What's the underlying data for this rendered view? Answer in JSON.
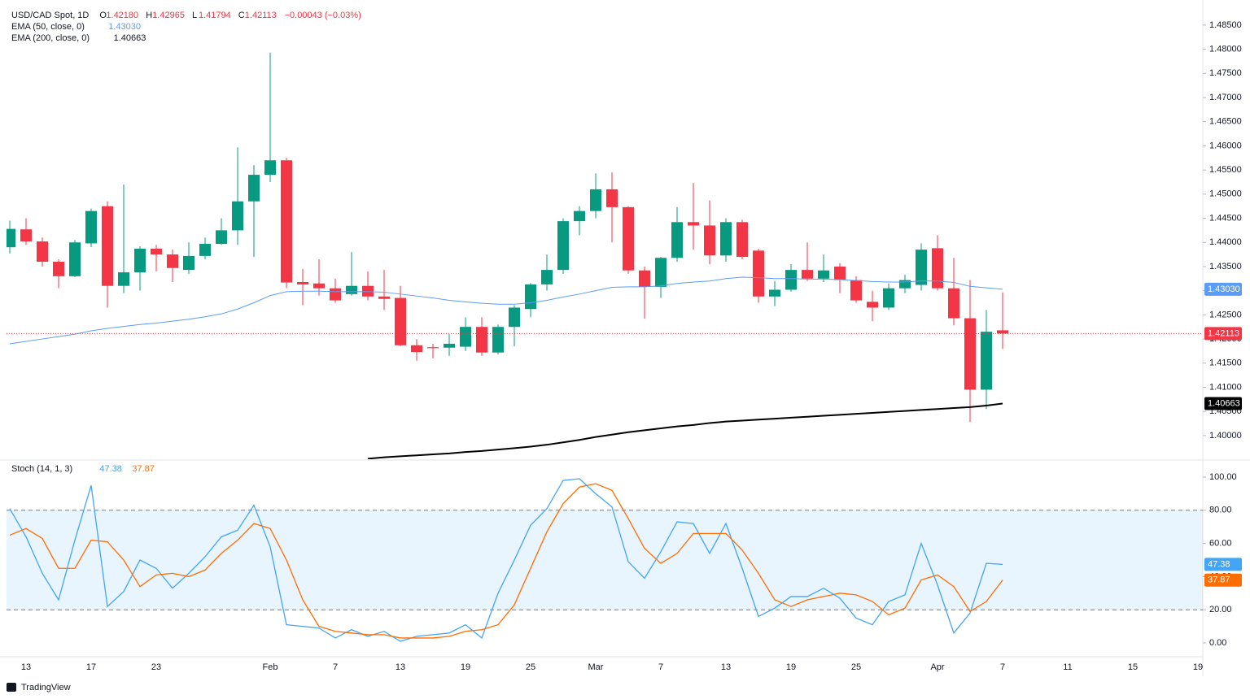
{
  "chart_data": [
    {
      "type": "candlestick",
      "title": "USD/CAD Spot, 1D",
      "ohlc_legend": [
        {
          "key": "O",
          "label": "1.42180"
        },
        {
          "key": "H",
          "label": "1.42965"
        },
        {
          "key": "L",
          "label": "1.41794"
        },
        {
          "key": "C",
          "label": "1.42113"
        }
      ],
      "change": "−0.00043 (−0.03%)",
      "up_color": "#089981",
      "down_color": "#f23645",
      "categories": [
        null,
        "13",
        null,
        null,
        null,
        "17",
        null,
        null,
        null,
        "23",
        null,
        null,
        null,
        null,
        null,
        null,
        "Feb",
        null,
        null,
        null,
        "7",
        null,
        null,
        null,
        "13",
        null,
        null,
        null,
        "19",
        null,
        null,
        null,
        "25",
        null,
        null,
        null,
        "Mar",
        null,
        null,
        null,
        "7",
        null,
        null,
        null,
        "13",
        null,
        null,
        null,
        "19",
        null,
        null,
        null,
        "25",
        null,
        null,
        null,
        null,
        "Apr",
        null,
        null,
        null,
        "7",
        null,
        null,
        null,
        "11",
        null,
        null,
        null,
        "15",
        null,
        null,
        null,
        "19"
      ],
      "open": [
        1.439,
        1.4427,
        1.4402,
        1.436,
        1.433,
        1.4398,
        1.4475,
        1.431,
        1.4338,
        1.4387,
        1.4375,
        1.4343,
        1.4372,
        1.4397,
        1.4425,
        1.4485,
        1.454,
        1.457,
        1.4318,
        1.4315,
        1.4305,
        1.4293,
        1.431,
        1.4288,
        1.4285,
        1.4187,
        1.4183,
        1.4182,
        1.4184,
        1.4225,
        1.4172,
        1.4225,
        1.4262,
        1.4313,
        1.4343,
        1.4444,
        1.4465,
        1.451,
        1.4473,
        1.4342,
        1.4308,
        1.4368,
        1.4442,
        1.4435,
        1.4373,
        1.4442,
        1.4383,
        1.4288,
        1.4302,
        1.4343,
        1.4325,
        1.435,
        1.4322,
        1.4277,
        1.4265,
        1.4305,
        1.4312,
        1.4388,
        1.4305,
        1.4243,
        1.4095,
        1.4218,
        null,
        null,
        null,
        null,
        null,
        null,
        null,
        null,
        null,
        null,
        null,
        null
      ],
      "high": [
        1.4445,
        1.445,
        1.441,
        1.4365,
        1.4405,
        1.447,
        1.4485,
        1.452,
        1.4392,
        1.4395,
        1.4385,
        1.44,
        1.441,
        1.445,
        1.4597,
        1.456,
        1.4793,
        1.4575,
        1.4345,
        1.4365,
        1.4325,
        1.438,
        1.434,
        1.4343,
        1.431,
        1.42,
        1.419,
        1.421,
        1.4245,
        1.4245,
        1.423,
        1.427,
        1.4316,
        1.4375,
        1.445,
        1.4475,
        1.4543,
        1.4545,
        1.4475,
        1.435,
        1.437,
        1.4473,
        1.4523,
        1.4487,
        1.445,
        1.4447,
        1.4387,
        1.432,
        1.4355,
        1.44,
        1.4375,
        1.4357,
        1.433,
        1.43,
        1.4315,
        1.4333,
        1.4398,
        1.4415,
        1.4368,
        1.4322,
        1.426,
        1.42965,
        null,
        null,
        null,
        null,
        null,
        null,
        null,
        null,
        null,
        null,
        null,
        null
      ],
      "low": [
        1.4377,
        1.4395,
        1.435,
        1.4305,
        1.4328,
        1.439,
        1.4265,
        1.4295,
        1.43,
        1.434,
        1.4318,
        1.4335,
        1.4365,
        1.4395,
        1.4395,
        1.437,
        1.4525,
        1.4305,
        1.427,
        1.429,
        1.4275,
        1.429,
        1.428,
        1.426,
        1.4185,
        1.4155,
        1.416,
        1.4165,
        1.4175,
        1.4165,
        1.4168,
        1.4185,
        1.4245,
        1.43,
        1.4335,
        1.4415,
        1.445,
        1.44,
        1.4335,
        1.4242,
        1.4285,
        1.436,
        1.4385,
        1.4355,
        1.436,
        1.4365,
        1.4275,
        1.4268,
        1.4298,
        1.432,
        1.4318,
        1.4295,
        1.4275,
        1.4237,
        1.426,
        1.4295,
        1.43,
        1.43,
        1.4228,
        1.4028,
        1.4055,
        1.41794,
        null,
        null,
        null,
        null,
        null,
        null,
        null,
        null,
        null,
        null,
        null,
        null
      ],
      "close": [
        1.4428,
        1.4402,
        1.436,
        1.433,
        1.44,
        1.4465,
        1.431,
        1.4338,
        1.4387,
        1.4375,
        1.4347,
        1.4372,
        1.4397,
        1.4425,
        1.4485,
        1.454,
        1.457,
        1.4317,
        1.4313,
        1.4305,
        1.428,
        1.431,
        1.4288,
        1.4283,
        1.4187,
        1.4173,
        1.4181,
        1.419,
        1.4225,
        1.4172,
        1.4225,
        1.4265,
        1.4313,
        1.4343,
        1.4444,
        1.4465,
        1.451,
        1.4473,
        1.4342,
        1.4308,
        1.4368,
        1.4442,
        1.4435,
        1.4373,
        1.4442,
        1.437,
        1.4288,
        1.4302,
        1.4343,
        1.4325,
        1.4342,
        1.4322,
        1.428,
        1.4265,
        1.4305,
        1.4322,
        1.4385,
        1.4305,
        1.4243,
        1.4095,
        1.4215,
        1.42113,
        null,
        null,
        null,
        null,
        null,
        null,
        null,
        null,
        null,
        null,
        null,
        null
      ],
      "series": [
        {
          "name": "EMA (50, close, 0)",
          "color": "#5b9cf6",
          "last_label": "1.43030",
          "values": [
            1.419,
            1.4195,
            1.42,
            1.4205,
            1.421,
            1.4217,
            1.4222,
            1.4226,
            1.423,
            1.4233,
            1.4237,
            1.4241,
            1.4246,
            1.4252,
            1.4262,
            1.4275,
            1.429,
            1.4298,
            1.4299,
            1.4299,
            1.4298,
            1.4298,
            1.4298,
            1.4297,
            1.4293,
            1.4289,
            1.4285,
            1.428,
            1.4277,
            1.4274,
            1.4272,
            1.4272,
            1.4275,
            1.428,
            1.4287,
            1.4293,
            1.43,
            1.4307,
            1.4308,
            1.4308,
            1.431,
            1.4315,
            1.4318,
            1.432,
            1.4325,
            1.4328,
            1.4327,
            1.4325,
            1.4325,
            1.4324,
            1.4324,
            1.4323,
            1.4321,
            1.4319,
            1.4318,
            1.4318,
            1.432,
            1.432,
            1.4317,
            1.4309,
            1.4306,
            1.4303,
            null,
            null,
            null,
            null,
            null,
            null,
            null,
            null,
            null,
            null,
            null,
            null
          ]
        },
        {
          "name": "EMA (200, close, 0)",
          "color": "#000000",
          "last_label": "1.40663",
          "values": [
            null,
            null,
            null,
            null,
            null,
            null,
            null,
            null,
            null,
            null,
            null,
            null,
            null,
            null,
            null,
            null,
            null,
            null,
            null,
            null,
            null,
            null,
            1.3952,
            1.3955,
            1.3957,
            1.3959,
            1.3961,
            1.3963,
            1.3966,
            1.3968,
            1.3971,
            1.3974,
            1.3977,
            1.3981,
            1.3986,
            1.3991,
            1.3997,
            1.4002,
            1.4007,
            1.4011,
            1.4015,
            1.4019,
            1.4022,
            1.4026,
            1.4029,
            1.4031,
            1.4033,
            1.4035,
            1.4037,
            1.4039,
            1.4041,
            1.4043,
            1.4045,
            1.4047,
            1.4049,
            1.4051,
            1.4053,
            1.4055,
            1.4057,
            1.4059,
            1.4062,
            1.40663,
            null,
            null,
            null,
            null,
            null,
            null,
            null,
            null,
            null,
            null,
            null,
            null
          ]
        }
      ],
      "ylim": [
        1.3951,
        1.4902
      ],
      "yticks": [
        {
          "value": 1.4,
          "label": "1.40000"
        },
        {
          "value": 1.405,
          "label": "1.40500"
        },
        {
          "value": 1.41,
          "label": "1.41000"
        },
        {
          "value": 1.415,
          "label": "1.41500"
        },
        {
          "value": 1.42,
          "label": "1.42000"
        },
        {
          "value": 1.425,
          "label": "1.42500"
        },
        {
          "value": 1.43,
          "label": "1.43000"
        },
        {
          "value": 1.435,
          "label": "1.43500"
        },
        {
          "value": 1.44,
          "label": "1.44000"
        },
        {
          "value": 1.445,
          "label": "1.44500"
        },
        {
          "value": 1.45,
          "label": "1.45000"
        },
        {
          "value": 1.455,
          "label": "1.45500"
        },
        {
          "value": 1.46,
          "label": "1.46000"
        },
        {
          "value": 1.465,
          "label": "1.46500"
        },
        {
          "value": 1.47,
          "label": "1.47000"
        },
        {
          "value": 1.475,
          "label": "1.47500"
        },
        {
          "value": 1.48,
          "label": "1.48000"
        },
        {
          "value": 1.485,
          "label": "1.48500"
        }
      ]
    },
    {
      "type": "line",
      "title": "Stoch (14, 1, 3)",
      "categories": [
        null,
        "13",
        null,
        null,
        null,
        "17",
        null,
        null,
        null,
        "23",
        null,
        null,
        null,
        null,
        null,
        null,
        "Feb",
        null,
        null,
        null,
        "7",
        null,
        null,
        null,
        "13",
        null,
        null,
        null,
        "19",
        null,
        null,
        null,
        "25",
        null,
        null,
        null,
        "Mar",
        null,
        null,
        null,
        "7",
        null,
        null,
        null,
        "13",
        null,
        null,
        null,
        "19",
        null,
        null,
        null,
        "25",
        null,
        null,
        null,
        null,
        "Apr",
        null,
        null,
        null,
        "7",
        null,
        null,
        null,
        "11",
        null,
        null,
        null,
        "15",
        null,
        null,
        null,
        "19"
      ],
      "series": [
        {
          "color": "#42a5f5",
          "values": [
            81,
            64,
            42,
            26,
            62,
            95,
            22,
            31,
            50,
            45,
            33,
            42,
            52,
            64,
            68,
            83,
            58,
            11,
            10,
            9,
            3,
            8,
            4,
            7,
            1,
            4,
            5,
            6,
            11,
            3,
            30,
            50,
            71,
            81,
            98,
            99,
            90,
            82,
            49,
            39,
            55,
            73,
            72,
            54,
            72,
            45,
            16,
            21,
            28,
            28,
            33,
            27,
            15,
            11,
            25,
            29,
            60,
            35,
            6,
            18,
            48,
            47.38,
            null,
            null,
            null,
            null,
            null,
            null,
            null,
            null,
            null,
            null,
            null,
            null
          ]
        },
        {
          "color": "#ff6d00",
          "values": [
            65,
            69,
            63,
            45,
            45,
            62,
            61,
            50,
            34,
            41,
            42,
            40,
            44,
            54,
            62,
            72,
            69,
            50,
            26,
            10,
            7,
            6,
            5,
            5,
            3,
            3,
            3,
            4,
            7,
            8,
            11,
            23,
            45,
            67,
            84,
            94,
            96,
            92,
            75,
            57,
            48,
            54,
            66,
            66,
            66,
            56,
            42,
            26,
            22,
            26,
            28,
            30,
            29,
            25,
            17,
            21,
            38,
            41,
            34,
            19,
            25,
            37.87,
            null,
            null,
            null,
            null,
            null,
            null,
            null,
            null,
            null,
            null,
            null,
            null
          ]
        }
      ],
      "band": [
        20,
        80
      ],
      "band_color": "#2196f3",
      "ylim": [
        -8.3,
        109.8
      ],
      "yticks": [
        {
          "value": 0,
          "label": "0.00"
        },
        {
          "value": 20,
          "label": "20.00"
        },
        {
          "value": 40,
          "label": "40.00"
        },
        {
          "value": 60,
          "label": "60.00"
        },
        {
          "value": 80,
          "label": "80.00"
        },
        {
          "value": 100,
          "label": "100.00"
        }
      ]
    }
  ],
  "footer": "TradingView"
}
